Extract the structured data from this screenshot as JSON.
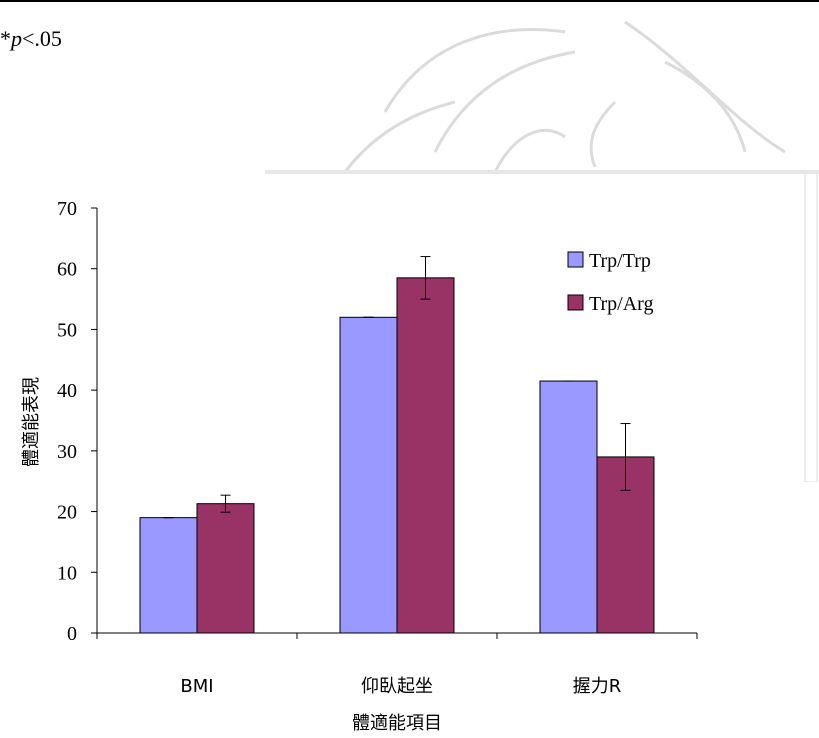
{
  "note": {
    "prefix": "*",
    "p": "p",
    "suffix": "<.05"
  },
  "chart_data": {
    "type": "bar",
    "categories": [
      "BMI",
      "仰臥起坐",
      "握力R"
    ],
    "series": [
      {
        "name": "Trp/Trp",
        "color": "#9999ff",
        "values": [
          19,
          52,
          41.5
        ],
        "errors": [
          0,
          0,
          0
        ]
      },
      {
        "name": "Trp/Arg",
        "color": "#993366",
        "values": [
          21.3,
          58.5,
          29
        ],
        "errors": [
          1.4,
          3.5,
          5.5
        ]
      }
    ],
    "xlabel": "體適能項目",
    "ylabel": "體適能表現",
    "ylim": [
      0,
      70
    ],
    "yticks": [
      0,
      10,
      20,
      30,
      40,
      50,
      60,
      70
    ],
    "legend_position": "top-right",
    "grid": false
  }
}
